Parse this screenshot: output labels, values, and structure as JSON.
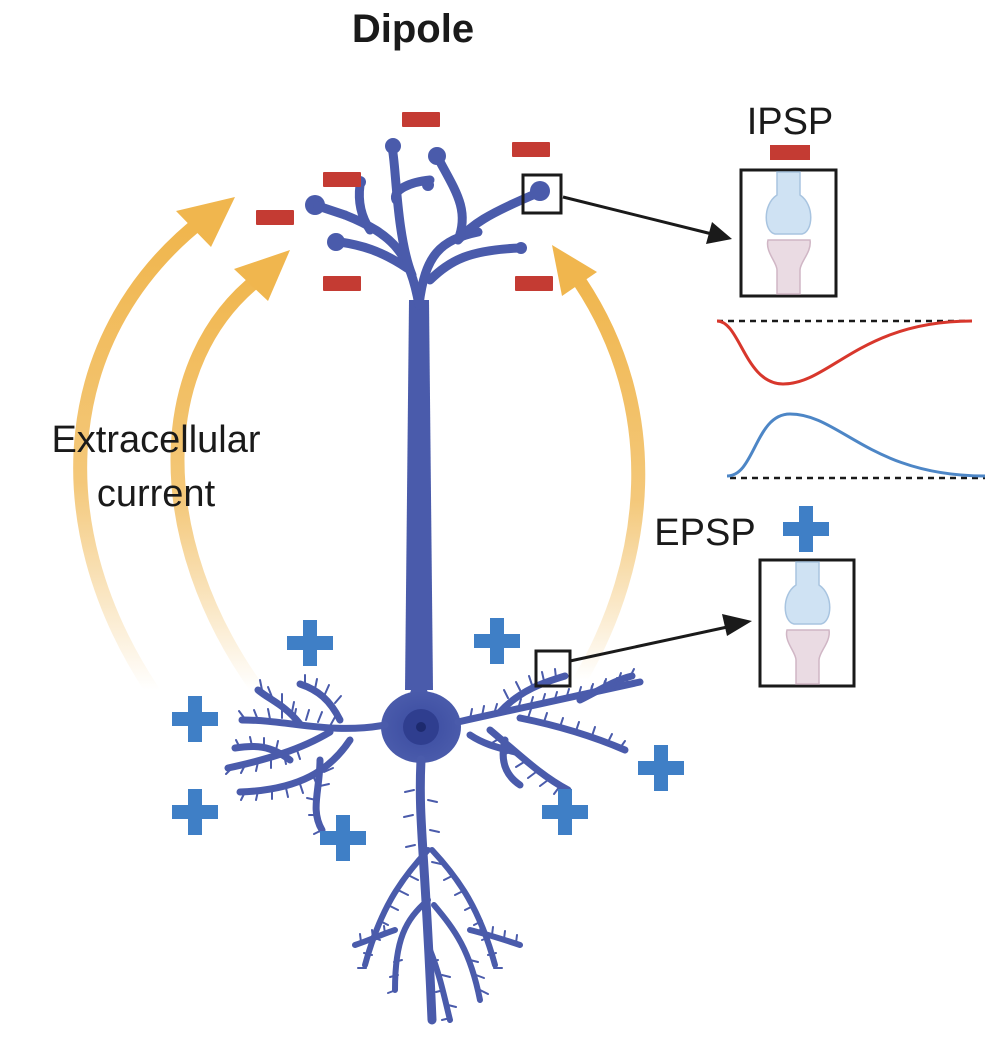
{
  "title": "Dipole",
  "labels": {
    "extracellular_line1": "Extracellular",
    "extracellular_line2": "current",
    "ipsp": "IPSP",
    "epsp": "EPSP"
  },
  "colors": {
    "neuron": "#4a5bab",
    "neuron_dark": "#34428a",
    "negative": "#c43b33",
    "positive": "#3f7fc6",
    "current_arrow": "#f0b64e",
    "ipsp_trace": "#d8372c",
    "epsp_trace": "#4d86c6",
    "presynaptic": "#cfe2f3",
    "postsynaptic": "#eadbe3",
    "pointer": "#1a1a1a"
  },
  "icons": {
    "minus": "minus-sign-icon",
    "plus": "plus-sign-icon"
  }
}
